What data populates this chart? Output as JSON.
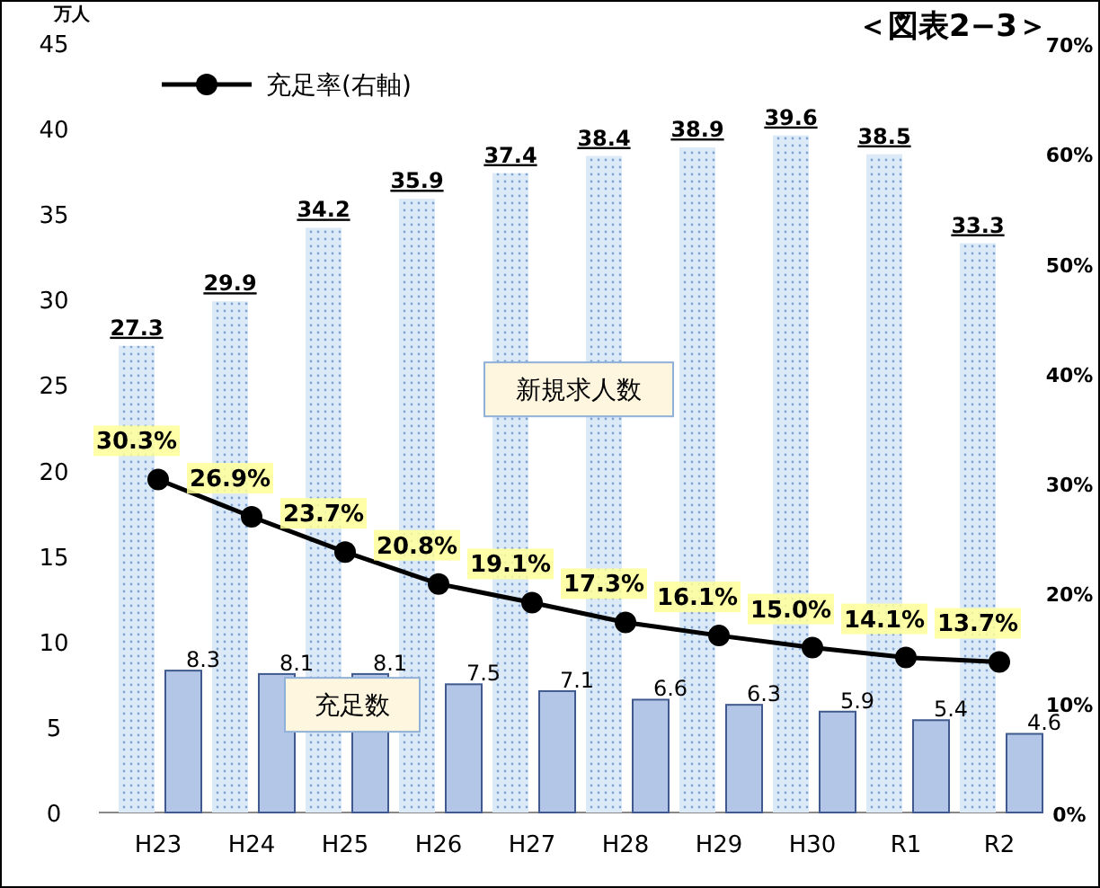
{
  "chart_data": {
    "type": "bar",
    "title": "＜図表2−3＞",
    "ylabel": "万人",
    "categories": [
      "H23",
      "H24",
      "H25",
      "H26",
      "H27",
      "H28",
      "H29",
      "H30",
      "R1",
      "R2"
    ],
    "ylim": [
      0,
      45
    ],
    "yticks": [
      0,
      5,
      10,
      15,
      20,
      25,
      30,
      35,
      40,
      45
    ],
    "y2lim": [
      0,
      70
    ],
    "y2ticks": [
      {
        "value": 0,
        "label": "0%"
      },
      {
        "value": 10,
        "label": "10%"
      },
      {
        "value": 20,
        "label": "20%"
      },
      {
        "value": 30,
        "label": "30%"
      },
      {
        "value": 40,
        "label": "40%"
      },
      {
        "value": 50,
        "label": "50%"
      },
      {
        "value": 60,
        "label": "60%"
      },
      {
        "value": 70,
        "label": "70%"
      }
    ],
    "grid": false,
    "legend": "top left",
    "marker": "circle",
    "series": [
      {
        "name": "新規求人数",
        "color": "#dce9f7",
        "values": [
          27.3,
          29.9,
          34.2,
          35.9,
          37.4,
          38.4,
          38.9,
          39.6,
          38.5,
          33.3
        ],
        "value_labels": [
          "27.3",
          "29.9",
          "34.2",
          "35.9",
          "37.4",
          "38.4",
          "38.9",
          "39.6",
          "38.5",
          "33.3"
        ]
      },
      {
        "name": "充足数",
        "color": "#b4c6e7",
        "values": [
          8.3,
          8.1,
          8.1,
          7.5,
          7.1,
          6.6,
          6.3,
          5.9,
          5.4,
          4.6
        ],
        "value_labels": [
          "8.3",
          "8.1",
          "8.1",
          "7.5",
          "7.1",
          "6.6",
          "6.3",
          "5.9",
          "5.4",
          "4.6"
        ]
      },
      {
        "name": "充足率(右軸)",
        "type": "line",
        "axis": "y2",
        "color": "#000000",
        "values": [
          30.3,
          26.9,
          23.7,
          20.8,
          19.1,
          17.3,
          16.1,
          15.0,
          14.1,
          13.7
        ],
        "value_labels": [
          "30.3%",
          "26.9%",
          "23.7%",
          "20.8%",
          "19.1%",
          "17.3%",
          "16.1%",
          "15.0%",
          "14.1%",
          "13.7%"
        ]
      }
    ]
  }
}
